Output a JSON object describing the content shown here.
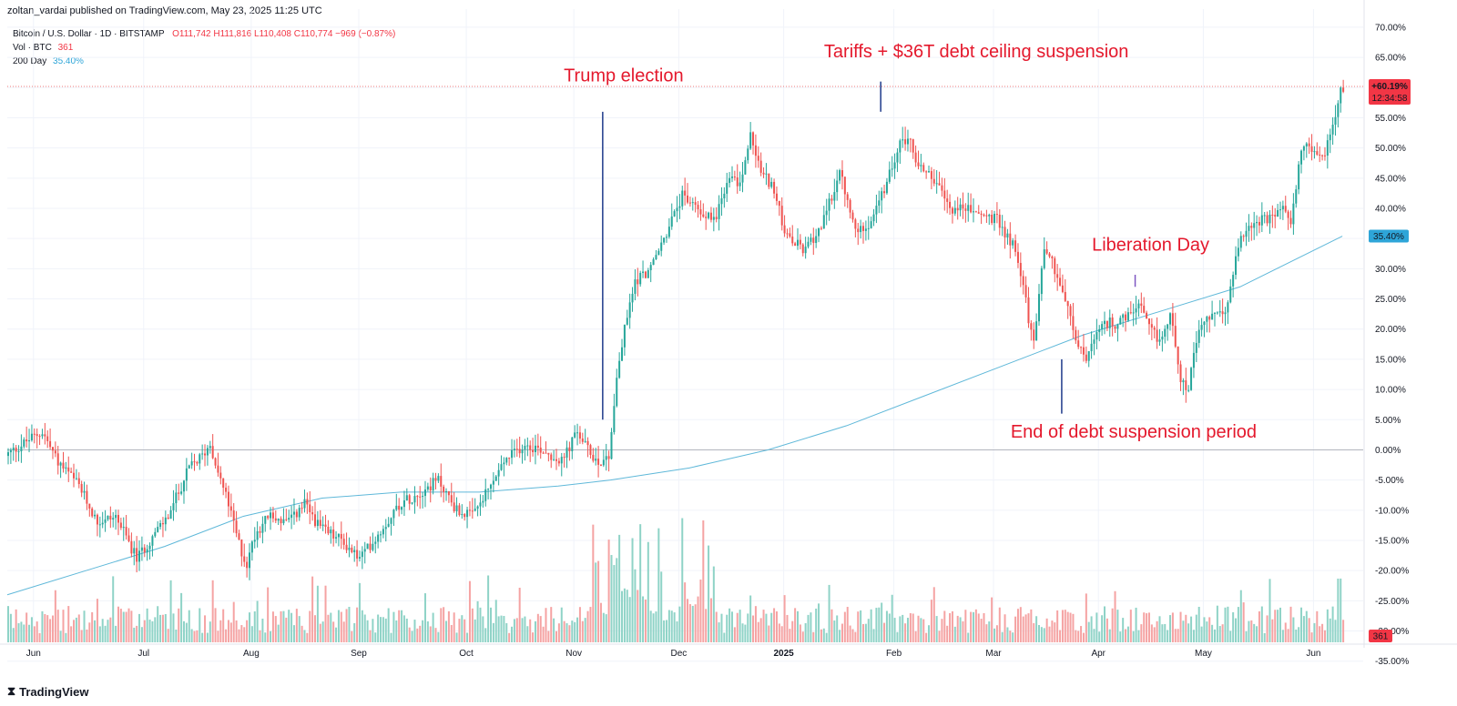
{
  "publisher": "zoltan_vardai published on TradingView.com, May 23, 2025 11:25 UTC",
  "legend": {
    "symbol": "Bitcoin / U.S. Dollar · 1D · BITSTAMP",
    "ohlc": "O111,742  H111,816  L110,408  C110,774  −969 (−0.87%)",
    "vol_label": "Vol · BTC",
    "vol_value": "361",
    "ma_label": "200 Day",
    "ma_value": "35.40%"
  },
  "brand": "TradingView",
  "colors": {
    "up": "#26a69a",
    "down": "#ef5350",
    "ma": "#5fb8d9",
    "annotation": "#e4182c",
    "marker": "#1e3a8a"
  },
  "chart_data": {
    "type": "candlestick",
    "title": "Bitcoin / U.S. Dollar · 1D · BITSTAMP",
    "y_scale": "percent change",
    "ylim": [
      -37,
      73
    ],
    "y_ticks": [
      "70.00%",
      "65.00%",
      "60.00%",
      "55.00%",
      "50.00%",
      "45.00%",
      "40.00%",
      "35.00%",
      "30.00%",
      "25.00%",
      "20.00%",
      "15.00%",
      "10.00%",
      "5.00%",
      "0.00%",
      "-5.00%",
      "-10.00%",
      "-15.00%",
      "-20.00%",
      "-25.00%",
      "-30.00%",
      "-35.00%"
    ],
    "x_labels": [
      "Jun",
      "Jul",
      "Aug",
      "Sep",
      "Oct",
      "Nov",
      "Dec",
      "2025",
      "Feb",
      "Mar",
      "Apr",
      "May",
      "Jun"
    ],
    "price_points": [
      [
        0,
        -1
      ],
      [
        10,
        2
      ],
      [
        14,
        3
      ],
      [
        20,
        -2
      ],
      [
        28,
        -6
      ],
      [
        35,
        -12
      ],
      [
        42,
        -11
      ],
      [
        50,
        -18
      ],
      [
        55,
        -15
      ],
      [
        62,
        -11
      ],
      [
        70,
        -3
      ],
      [
        75,
        -1
      ],
      [
        78,
        1
      ],
      [
        82,
        -5
      ],
      [
        85,
        -9
      ],
      [
        88,
        -14
      ],
      [
        90,
        -17
      ],
      [
        92,
        -19
      ],
      [
        95,
        -14
      ],
      [
        100,
        -11
      ],
      [
        108,
        -12
      ],
      [
        114,
        -9
      ],
      [
        120,
        -13
      ],
      [
        128,
        -15
      ],
      [
        135,
        -18
      ],
      [
        142,
        -14
      ],
      [
        150,
        -9
      ],
      [
        158,
        -7
      ],
      [
        165,
        -5
      ],
      [
        172,
        -10
      ],
      [
        178,
        -11
      ],
      [
        185,
        -6
      ],
      [
        190,
        -2
      ],
      [
        198,
        1
      ],
      [
        205,
        0
      ],
      [
        212,
        -2
      ],
      [
        218,
        3
      ],
      [
        222,
        0
      ],
      [
        226,
        -2
      ],
      [
        230,
        -1
      ],
      [
        233,
        12
      ],
      [
        236,
        20
      ],
      [
        240,
        28
      ],
      [
        246,
        30
      ],
      [
        252,
        36
      ],
      [
        258,
        42
      ],
      [
        264,
        40
      ],
      [
        270,
        38
      ],
      [
        276,
        45
      ],
      [
        280,
        44
      ],
      [
        284,
        52
      ],
      [
        288,
        46
      ],
      [
        292,
        44
      ],
      [
        298,
        35
      ],
      [
        305,
        33
      ],
      [
        312,
        38
      ],
      [
        318,
        46
      ],
      [
        324,
        36
      ],
      [
        330,
        38
      ],
      [
        336,
        44
      ],
      [
        340,
        50
      ],
      [
        344,
        52
      ],
      [
        348,
        47
      ],
      [
        352,
        46
      ],
      [
        356,
        43
      ],
      [
        360,
        40
      ],
      [
        366,
        40
      ],
      [
        372,
        39
      ],
      [
        378,
        38
      ],
      [
        384,
        34
      ],
      [
        388,
        28
      ],
      [
        390,
        21
      ],
      [
        392,
        18
      ],
      [
        396,
        34
      ],
      [
        400,
        30
      ],
      [
        404,
        25
      ],
      [
        408,
        18
      ],
      [
        412,
        15
      ],
      [
        416,
        19
      ],
      [
        420,
        21
      ],
      [
        424,
        21
      ],
      [
        428,
        22
      ],
      [
        432,
        24
      ],
      [
        436,
        20
      ],
      [
        440,
        18
      ],
      [
        444,
        22
      ],
      [
        446,
        18
      ],
      [
        448,
        12
      ],
      [
        451,
        10
      ],
      [
        454,
        18
      ],
      [
        458,
        22
      ],
      [
        462,
        22
      ],
      [
        466,
        24
      ],
      [
        470,
        34
      ],
      [
        474,
        37
      ],
      [
        478,
        38
      ],
      [
        482,
        38
      ],
      [
        486,
        40
      ],
      [
        490,
        38
      ],
      [
        494,
        50
      ],
      [
        498,
        50
      ],
      [
        502,
        48
      ],
      [
        506,
        54
      ],
      [
        509,
        60
      ]
    ],
    "ma_points": [
      [
        0,
        -24
      ],
      [
        30,
        -20
      ],
      [
        60,
        -16
      ],
      [
        90,
        -11
      ],
      [
        120,
        -8
      ],
      [
        150,
        -7
      ],
      [
        180,
        -7
      ],
      [
        210,
        -6
      ],
      [
        230,
        -5
      ],
      [
        260,
        -3
      ],
      [
        290,
        0
      ],
      [
        320,
        4
      ],
      [
        350,
        9
      ],
      [
        380,
        14
      ],
      [
        410,
        19
      ],
      [
        440,
        23
      ],
      [
        470,
        27
      ],
      [
        509,
        35.4
      ]
    ],
    "volume_axis": "Vol · BTC",
    "last_vol": "361",
    "badges": {
      "price": "+60.19%",
      "countdown": "12:34:58",
      "ma": "35.40%",
      "vol": "361"
    },
    "annotations": [
      {
        "text": "Trump election",
        "day": 227,
        "top": 56,
        "bottom": 5,
        "label_y": 61
      },
      {
        "text": "Tariffs + $36T debt ceiling suspension",
        "day": 333,
        "top": 61,
        "bottom": 56,
        "label_y": 65
      },
      {
        "text": "Liberation Day",
        "day": 430,
        "top": 29,
        "bottom": 27,
        "label_y": 33
      },
      {
        "text": "End of debt suspension period",
        "day": 402,
        "top": 15,
        "bottom": 6,
        "label_y": 2
      }
    ]
  }
}
